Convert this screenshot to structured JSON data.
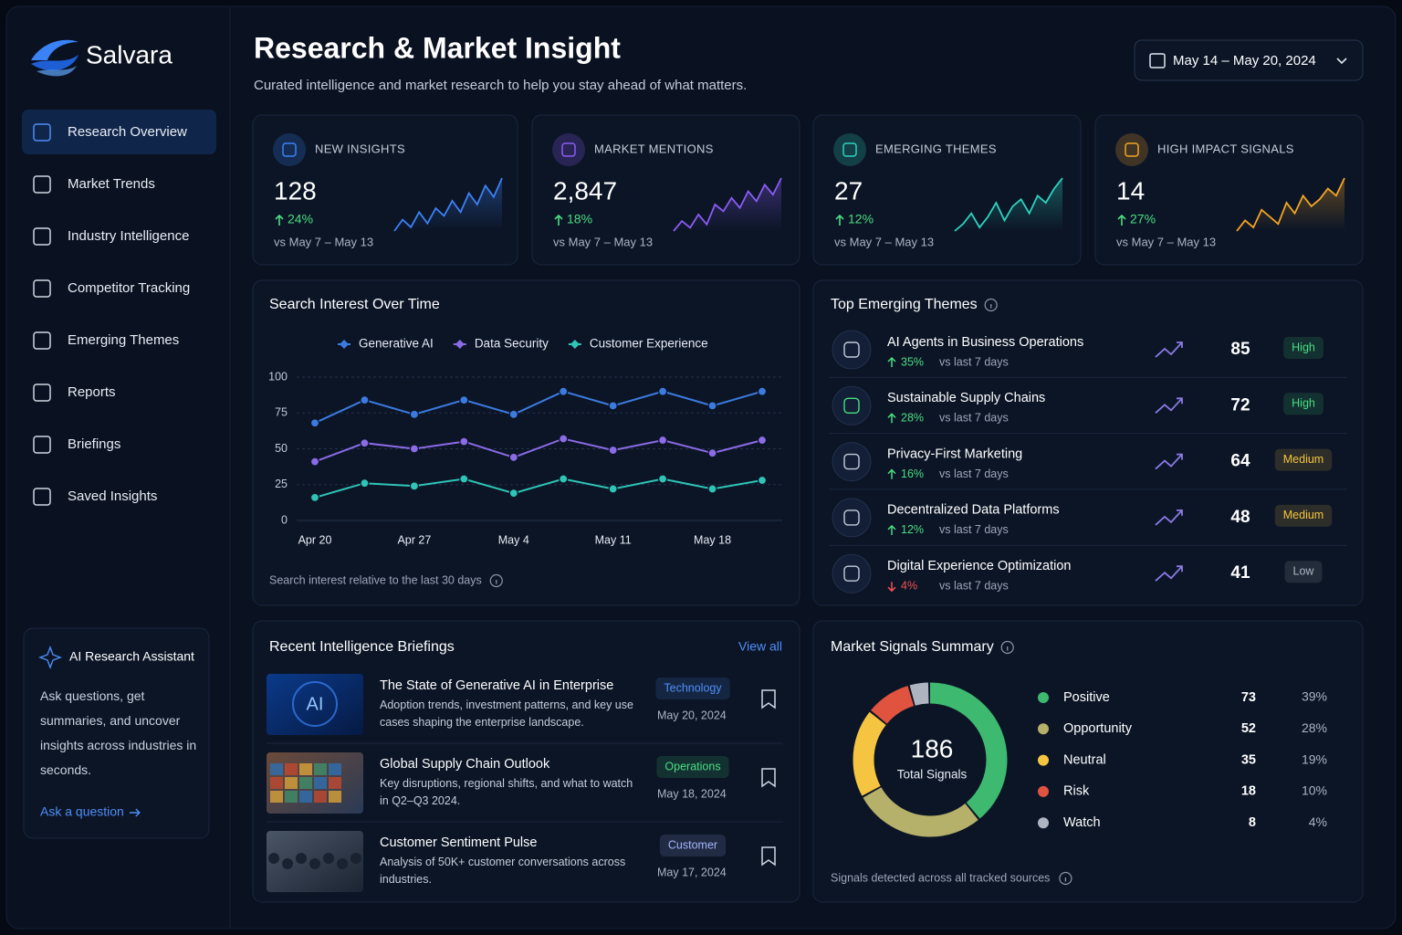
{
  "brand": "Salvara",
  "nav": [
    "Research Overview",
    "Market Trends",
    "Industry Intelligence",
    "Competitor Tracking",
    "Emerging Themes",
    "Reports",
    "Briefings",
    "Saved Insights"
  ],
  "assistant": {
    "title": "AI Research Assistant",
    "text": "Ask questions, get summaries, and uncover insights across industries in seconds.",
    "link": "Ask a question"
  },
  "header": {
    "title": "Research & Market Insight",
    "subtitle": "Curated intelligence and market research to help you stay ahead of what matters.",
    "date_range": "May 14 – May 20, 2024"
  },
  "kpis": [
    {
      "label": "NEW INSIGHTS",
      "value": 128,
      "change": "24%",
      "compare": "vs May 7 – May 13",
      "color": "#3b82f6",
      "sparkline": [
        20,
        35,
        25,
        45,
        30,
        50,
        40,
        60,
        45,
        70,
        55,
        80,
        65,
        90
      ]
    },
    {
      "label": "MARKET MENTIONS",
      "value": 2847,
      "value_label": "2,847",
      "change": "18%",
      "compare": "vs May 7 – May 13",
      "color": "#8b5cf6",
      "sparkline": [
        15,
        30,
        20,
        40,
        25,
        55,
        45,
        65,
        50,
        75,
        60,
        85,
        70,
        95
      ]
    },
    {
      "label": "EMERGING THEMES",
      "value": 27,
      "change": "12%",
      "compare": "vs May 7 – May 13",
      "color": "#2dd4bf",
      "sparkline": [
        15,
        25,
        40,
        20,
        35,
        55,
        30,
        50,
        60,
        40,
        65,
        55,
        75,
        90
      ]
    },
    {
      "label": "HIGH IMPACT SIGNALS",
      "value": 14,
      "change": "27%",
      "compare": "vs May 7 – May 13",
      "color": "#f5a524",
      "sparkline": [
        20,
        35,
        25,
        50,
        40,
        30,
        60,
        45,
        70,
        55,
        65,
        80,
        70,
        95
      ]
    }
  ],
  "chart_data": [
    {
      "type": "line",
      "title": "Search Interest Over Time",
      "categories": [
        "Apr 20",
        null,
        "Apr 27",
        null,
        "May 4",
        null,
        "May 11",
        null,
        "May 18",
        null
      ],
      "ylim": [
        0,
        100
      ],
      "yticks": [
        0,
        25,
        50,
        75,
        100
      ],
      "grid": true,
      "series": [
        {
          "name": "Generative AI",
          "color": "#3b7be0",
          "values": [
            68,
            84,
            74,
            84,
            74,
            90,
            80,
            90,
            80,
            90
          ]
        },
        {
          "name": "Data Security",
          "color": "#8b6be6",
          "values": [
            41,
            54,
            50,
            55,
            44,
            57,
            49,
            56,
            47,
            56
          ]
        },
        {
          "name": "Customer Experience",
          "color": "#2ec4b6",
          "values": [
            16,
            26,
            24,
            29,
            19,
            29,
            22,
            29,
            22,
            28
          ]
        }
      ],
      "note": "Search interest relative to the last 30 days"
    },
    {
      "type": "donut",
      "title": "Market Signals Summary",
      "total": 186,
      "total_label": "Total Signals",
      "categories": [
        "Positive",
        "Opportunity",
        "Neutral",
        "Risk",
        "Watch"
      ],
      "values": [
        73,
        52,
        35,
        18,
        8
      ],
      "share_labels": [
        "39%",
        "28%",
        "19%",
        "10%",
        "4%"
      ],
      "colors": [
        "#3dba6f",
        "#b5b06a",
        "#f5c542",
        "#e0533f",
        "#aeb5c0"
      ],
      "note": "Signals detected across all tracked sources"
    }
  ],
  "themes": {
    "title": "Top Emerging Themes",
    "items": [
      {
        "name": "AI Agents in Business Operations",
        "change": "35%",
        "direction": "up",
        "compare": "vs last 7 days",
        "score": 85,
        "level": "High",
        "badge_color": "#4ade80"
      },
      {
        "name": "Sustainable Supply Chains",
        "change": "28%",
        "direction": "up",
        "compare": "vs last 7 days",
        "score": 72,
        "level": "High",
        "badge_color": "#4ade80"
      },
      {
        "name": "Privacy-First Marketing",
        "change": "16%",
        "direction": "up",
        "compare": "vs last 7 days",
        "score": 64,
        "level": "Medium",
        "badge_color": "#f5c542"
      },
      {
        "name": "Decentralized Data Platforms",
        "change": "12%",
        "direction": "up",
        "compare": "vs last 7 days",
        "score": 48,
        "level": "Medium",
        "badge_color": "#f5c542"
      },
      {
        "name": "Digital Experience Optimization",
        "change": "4%",
        "direction": "down",
        "compare": "vs last 7 days",
        "score": 41,
        "level": "Low",
        "badge_color": "#aeb5c0"
      }
    ]
  },
  "briefings": {
    "title": "Recent Intelligence Briefings",
    "view_all": "View all",
    "items": [
      {
        "title": "The State of Generative AI in Enterprise",
        "description": "Adoption trends, investment patterns, and key use cases shaping the enterprise landscape.",
        "tag": "Technology",
        "tag_color": "#4f8ef7",
        "date": "May 20, 2024",
        "image_text": "AI"
      },
      {
        "title": "Global Supply Chain Outlook",
        "description": "Key disruptions, regional shifts, and what to watch in Q2–Q3 2024.",
        "tag": "Operations",
        "tag_color": "#4ade80",
        "date": "May 18, 2024"
      },
      {
        "title": "Customer Sentiment Pulse",
        "description": "Analysis of 50K+ customer conversations across industries.",
        "tag": "Customer",
        "tag_color": "#a5b4fc",
        "date": "May 17, 2024"
      }
    ]
  }
}
